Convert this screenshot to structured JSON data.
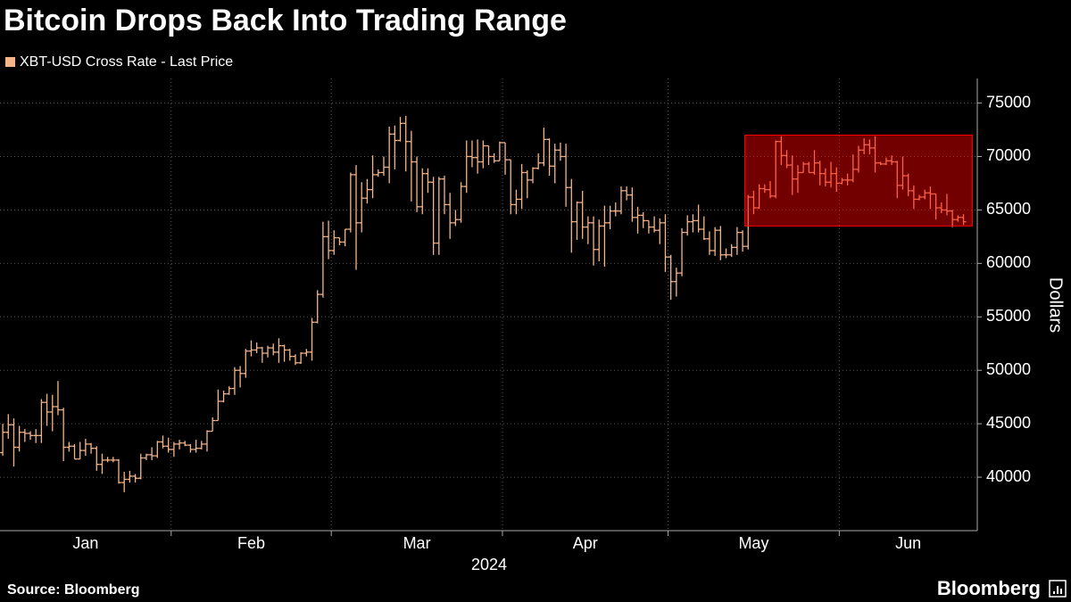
{
  "chart_data": {
    "type": "ohlc",
    "title": "Bitcoin Drops Back Into Trading Range",
    "series": [
      {
        "name": "XBT-USD Cross Rate - Last Price",
        "color": "#f6b587",
        "open": [
          42300,
          44200,
          44900,
          42800,
          44200,
          44100,
          43900,
          43900,
          47000,
          46100,
          46600,
          46300,
          42800,
          42900,
          41700,
          42500,
          43100,
          42700,
          41200,
          41600,
          41600,
          41600,
          39500,
          39800,
          40100,
          39900,
          41800,
          42100,
          42000,
          43300,
          42900,
          42600,
          43100,
          43200,
          43000,
          42600,
          42700,
          43100,
          44300,
          45300,
          47100,
          47800,
          48300,
          50000,
          49700,
          51800,
          51900,
          52100,
          51600,
          52100,
          51700,
          52300,
          51900,
          51300,
          50700,
          51600,
          51700,
          54500,
          57100,
          62500,
          61200,
          62400,
          62000,
          63200,
          68300,
          63800,
          66100,
          66900,
          68300,
          68500,
          69000,
          72100,
          71500,
          73100,
          71400,
          69500,
          65300,
          68400,
          67600,
          61900,
          67900,
          65500,
          63800,
          64100,
          67200,
          70000,
          69900,
          69500,
          71000,
          70000,
          69600,
          71300,
          69700,
          65500,
          66000,
          68500,
          67800,
          68900,
          69400,
          71600,
          69100,
          70600,
          70000,
          67100,
          63900,
          65700,
          63400,
          63800,
          61300,
          63500,
          63800,
          64900,
          64900,
          66800,
          66400,
          64300,
          64500,
          64000,
          63400,
          63100,
          63800,
          60600,
          58300,
          59100,
          62900,
          63900,
          64000,
          63200,
          62300,
          61200,
          63100,
          60800,
          60800,
          61500,
          62900,
          61600,
          66200,
          65200,
          67000,
          66900,
          66300,
          71400,
          70100,
          69200,
          67900,
          68500,
          69300,
          68500,
          69400,
          68400,
          67600,
          68400,
          67500,
          67800,
          67800,
          68800,
          70600,
          71100,
          70800,
          69400,
          69300,
          69600,
          69500,
          67300,
          68200,
          66800,
          66000,
          66200,
          66600,
          66500,
          65200,
          65000,
          64900,
          64100,
          64300
        ],
        "high": [
          45000,
          45900,
          45500,
          44800,
          44500,
          44300,
          44500,
          47300,
          47800,
          47700,
          49000,
          46500,
          43300,
          43100,
          43300,
          43600,
          43200,
          42900,
          42200,
          41900,
          41900,
          41700,
          40500,
          40600,
          40300,
          42200,
          42200,
          42800,
          43400,
          43900,
          43700,
          43300,
          43500,
          43400,
          43100,
          43500,
          43400,
          44400,
          45600,
          48200,
          48100,
          48500,
          50300,
          50400,
          52000,
          52800,
          52600,
          52200,
          52300,
          52500,
          53000,
          52400,
          52000,
          51500,
          51700,
          52000,
          54900,
          57500,
          63900,
          64000,
          63100,
          62400,
          63200,
          68500,
          69200,
          67600,
          67900,
          70100,
          68800,
          70000,
          72800,
          72900,
          73700,
          73800,
          72400,
          70000,
          68900,
          68900,
          68100,
          68100,
          68200,
          66600,
          65000,
          67600,
          71500,
          71500,
          71600,
          71500,
          71000,
          70300,
          71400,
          71300,
          69700,
          66900,
          69300,
          68700,
          69000,
          70300,
          72700,
          71700,
          71200,
          71300,
          71200,
          67900,
          65800,
          66800,
          64400,
          64400,
          64100,
          65400,
          65400,
          65700,
          67200,
          67200,
          67100,
          65300,
          64800,
          64000,
          64400,
          64200,
          64600,
          60800,
          59600,
          63300,
          64500,
          64600,
          65500,
          64400,
          63000,
          63400,
          63500,
          61400,
          61800,
          63400,
          63100,
          66400,
          66800,
          67400,
          67400,
          67700,
          71500,
          71900,
          70600,
          70100,
          69200,
          69500,
          69500,
          70600,
          69600,
          68900,
          69500,
          69000,
          68000,
          68400,
          70200,
          71000,
          71700,
          71600,
          71900,
          69500,
          69900,
          70100,
          69600,
          70000,
          68400,
          67300,
          66400,
          66900,
          67200,
          66500,
          65700,
          66500,
          65000,
          64500,
          64600
        ],
        "low": [
          42000,
          43600,
          41000,
          42400,
          43300,
          43500,
          43200,
          43200,
          44800,
          44300,
          45800,
          41500,
          42400,
          41700,
          41700,
          42000,
          42200,
          40600,
          40300,
          41400,
          41400,
          39400,
          38600,
          39500,
          39500,
          39800,
          41600,
          41600,
          41800,
          42700,
          42300,
          41900,
          42600,
          42900,
          42300,
          42300,
          42600,
          42400,
          44300,
          45300,
          47000,
          47700,
          47700,
          48400,
          49300,
          51300,
          51600,
          50700,
          51200,
          51400,
          50700,
          50800,
          50900,
          50500,
          50600,
          51300,
          50900,
          54400,
          56800,
          60400,
          60800,
          61700,
          61600,
          62900,
          59400,
          62900,
          65600,
          66100,
          68100,
          68200,
          67500,
          68800,
          71400,
          68600,
          65800,
          64800,
          64600,
          66600,
          60800,
          60800,
          64600,
          62300,
          63500,
          63800,
          66600,
          69000,
          68400,
          68900,
          69200,
          69400,
          69600,
          68300,
          64600,
          64600,
          65100,
          66100,
          67500,
          68800,
          69100,
          68200,
          67500,
          69600,
          65300,
          61000,
          62200,
          62300,
          61800,
          59800,
          60200,
          59700,
          63200,
          64400,
          64600,
          65900,
          63900,
          62800,
          63300,
          62800,
          62900,
          61800,
          59200,
          56600,
          56900,
          58800,
          62600,
          62900,
          62900,
          62200,
          60800,
          60700,
          60300,
          60500,
          60600,
          60800,
          61100,
          61300,
          64600,
          65100,
          66600,
          66100,
          66100,
          69200,
          68900,
          66400,
          66600,
          68500,
          68500,
          68300,
          67300,
          67200,
          67100,
          66700,
          67400,
          67300,
          67600,
          68500,
          70200,
          70200,
          68500,
          69200,
          69200,
          69200,
          66100,
          66900,
          66300,
          65100,
          65900,
          66000,
          65100,
          64100,
          64700,
          64500,
          63400,
          63900,
          63600
        ],
        "close": [
          44200,
          44900,
          42800,
          44200,
          44100,
          43900,
          43900,
          47000,
          46100,
          46600,
          46300,
          42800,
          42900,
          41700,
          42500,
          43100,
          42700,
          41200,
          41600,
          41600,
          41600,
          39500,
          39800,
          40100,
          39900,
          41800,
          42100,
          42000,
          43300,
          42900,
          42600,
          43100,
          43200,
          43000,
          42600,
          42700,
          43100,
          44300,
          45300,
          47100,
          47800,
          48300,
          50000,
          49700,
          51800,
          51900,
          52100,
          51600,
          52100,
          51700,
          52300,
          51900,
          51300,
          50700,
          51600,
          51700,
          54500,
          57100,
          62500,
          61200,
          62400,
          62000,
          63200,
          68300,
          63800,
          66100,
          66900,
          68300,
          68500,
          69000,
          72100,
          71500,
          73100,
          71400,
          69500,
          65300,
          68400,
          67600,
          61900,
          67900,
          65500,
          63800,
          64100,
          67200,
          70000,
          69900,
          69500,
          71000,
          70000,
          69600,
          71300,
          69700,
          65500,
          66000,
          68500,
          67800,
          68900,
          69400,
          71600,
          69100,
          70600,
          70000,
          67100,
          63900,
          65700,
          63400,
          63800,
          61300,
          63500,
          63800,
          64900,
          64900,
          66800,
          66400,
          64300,
          64500,
          64000,
          63400,
          63100,
          63800,
          60600,
          58300,
          59100,
          62900,
          63900,
          64000,
          63200,
          62300,
          61200,
          63100,
          60800,
          60800,
          61500,
          62900,
          61600,
          66200,
          65200,
          67000,
          66900,
          66300,
          71400,
          70100,
          69200,
          67900,
          68500,
          69300,
          68500,
          69400,
          68400,
          67600,
          68400,
          67500,
          67800,
          67800,
          68800,
          70600,
          71100,
          70800,
          69400,
          69300,
          69600,
          69500,
          67300,
          68200,
          66800,
          66000,
          66200,
          66600,
          66500,
          65200,
          65000,
          64900,
          64100,
          64300,
          63900
        ]
      }
    ],
    "xlim": [
      -0.5,
      176.5
    ],
    "xticks": [
      30.5,
      59.5,
      90.5,
      120.5,
      151.5
    ],
    "xtick_labels": [
      {
        "value": 15,
        "label": "Jan"
      },
      {
        "value": 45,
        "label": "Feb"
      },
      {
        "value": 75,
        "label": "Mar"
      },
      {
        "value": 105.5,
        "label": "Apr"
      },
      {
        "value": 136,
        "label": "May"
      },
      {
        "value": 164,
        "label": "Jun"
      }
    ],
    "xlabel": "2024",
    "ylabel": "Dollars",
    "ylim": [
      35000,
      77300
    ],
    "yticks": [
      40000,
      45000,
      50000,
      55000,
      60000,
      65000,
      70000,
      75000
    ],
    "grid": true,
    "highlight": {
      "x": [
        134.4,
        175.6
      ],
      "y": [
        63500,
        72000
      ],
      "color": "#ff0000"
    }
  },
  "footer": {
    "source": "Source: Bloomberg",
    "brand": "Bloomberg"
  }
}
